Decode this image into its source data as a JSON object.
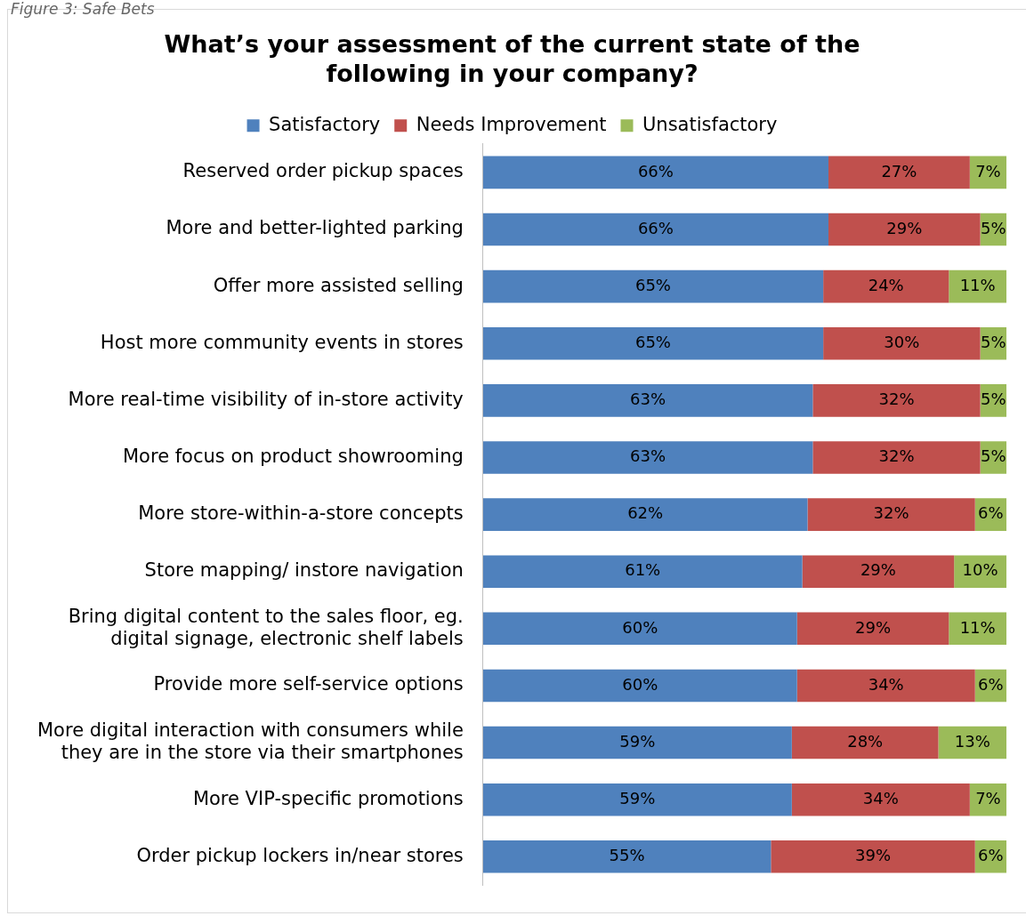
{
  "chart_data": {
    "type": "bar",
    "orientation": "horizontal",
    "stacked": true,
    "title": "What’s your assessment of the current state of the following in your company?",
    "annotations": [
      "Figure 3: Safe Bets"
    ],
    "categories": [
      "Reserved order pickup spaces",
      "More and better-lighted parking",
      "Offer more assisted selling",
      "Host more community events in stores",
      "More real-time visibility of in-store activity",
      "More focus on product showrooming",
      "More store-within-a-store concepts",
      "Store mapping/ instore navigation",
      "Bring digital content to the sales floor, eg. digital signage, electronic shelf labels",
      "Provide more self-service options",
      "More digital interaction with consumers while they are in the store via their smartphones",
      "More VIP-specific promotions",
      "Order pickup lockers in/near stores"
    ],
    "series": [
      {
        "name": "Satisfactory",
        "color": "#4f81bd",
        "values": [
          66,
          66,
          65,
          65,
          63,
          63,
          62,
          61,
          60,
          60,
          59,
          59,
          55
        ],
        "value_labels": [
          "66%",
          "66%",
          "65%",
          "65%",
          "63%",
          "63%",
          "62%",
          "61%",
          "60%",
          "60%",
          "59%",
          "59%",
          "55%"
        ]
      },
      {
        "name": "Needs Improvement",
        "color": "#c0504d",
        "values": [
          27,
          29,
          24,
          30,
          32,
          32,
          32,
          29,
          29,
          34,
          28,
          34,
          39
        ],
        "value_labels": [
          "27%",
          "29%",
          "24%",
          "30%",
          "32%",
          "32%",
          "32%",
          "29%",
          "29%",
          "34%",
          "28%",
          "34%",
          "39%"
        ]
      },
      {
        "name": "Unsatisfactory",
        "color": "#9bbb59",
        "values": [
          7,
          5,
          11,
          5,
          5,
          5,
          6,
          10,
          11,
          6,
          13,
          7,
          6
        ],
        "value_labels": [
          "7%",
          "5%",
          "11%",
          "5%",
          "5%",
          "5%",
          "6%",
          "10%",
          "11%",
          "6%",
          "13%",
          "7%",
          "6%"
        ]
      }
    ],
    "tick_labels": "y",
    "legend": "top",
    "grid": false
  }
}
